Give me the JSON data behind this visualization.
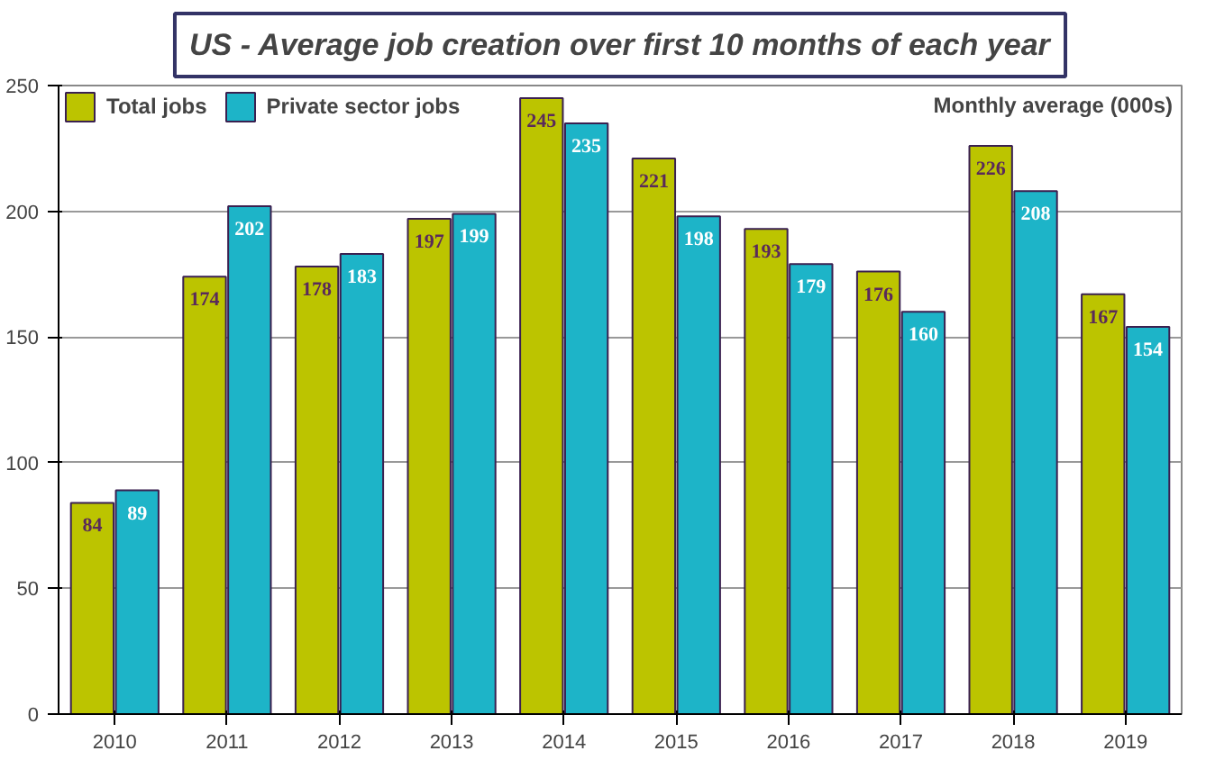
{
  "chart_data": {
    "type": "bar",
    "title": "US - Average job creation over first 10 months of each year",
    "categories": [
      "2010",
      "2011",
      "2012",
      "2013",
      "2014",
      "2015",
      "2016",
      "2017",
      "2018",
      "2019"
    ],
    "series": [
      {
        "name": "Total jobs",
        "color": "#bcc400",
        "values": [
          84,
          174,
          178,
          197,
          245,
          221,
          193,
          176,
          226,
          167
        ]
      },
      {
        "name": "Private sector jobs",
        "color": "#1db4c8",
        "values": [
          89,
          202,
          183,
          199,
          235,
          198,
          179,
          160,
          208,
          154
        ]
      }
    ],
    "ylim": [
      0,
      250
    ],
    "yticks": [
      0,
      50,
      100,
      150,
      200,
      250
    ],
    "grid": "y",
    "legend": "top left",
    "data_labels": true,
    "annotations": [
      "Monthly average (000s)"
    ]
  }
}
